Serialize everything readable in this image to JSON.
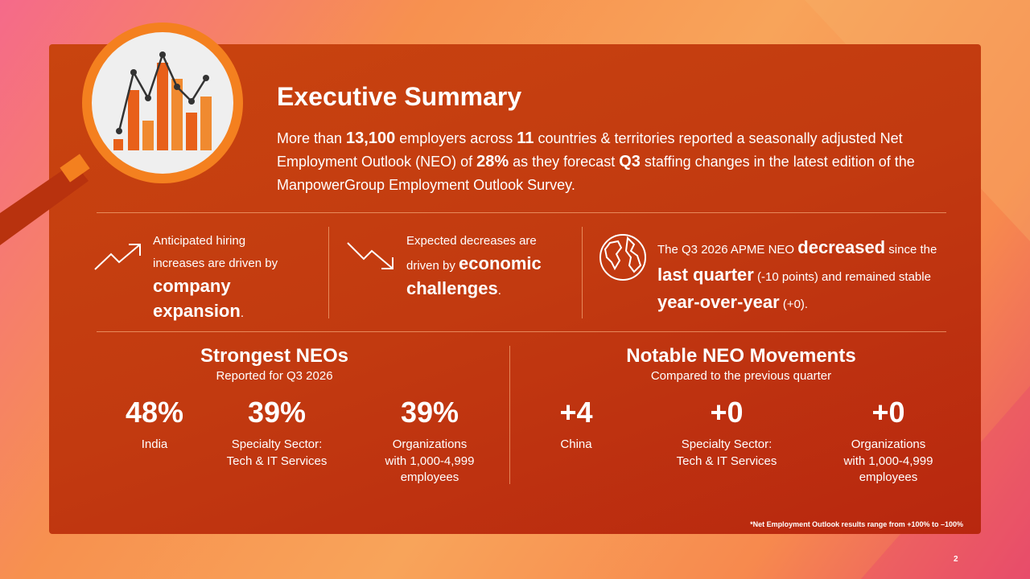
{
  "header": {
    "title": "Executive Summary",
    "summary": [
      {
        "text": "More than ",
        "strong": false
      },
      {
        "text": "13,100",
        "strong": true
      },
      {
        "text": " employers across ",
        "strong": false
      },
      {
        "text": "11",
        "strong": true
      },
      {
        "text": " countries & territories reported a seasonally adjusted Net Employment Outlook (NEO) of ",
        "strong": false
      },
      {
        "text": "28%",
        "strong": true
      },
      {
        "text": " as they forecast ",
        "strong": false
      },
      {
        "text": "Q3",
        "strong": true
      },
      {
        "text": " staffing changes in the latest edition of the ManpowerGroup Employment Outlook Survey.",
        "strong": false
      }
    ]
  },
  "highlights": [
    {
      "runs": [
        {
          "text": "Anticipated hiring increases are driven by ",
          "strong": false
        },
        {
          "text": "company expansion",
          "strong": true
        },
        {
          "text": ".",
          "strong": false
        }
      ]
    },
    {
      "runs": [
        {
          "text": "Expected decreases are driven by ",
          "strong": false
        },
        {
          "text": "economic challenges",
          "strong": true
        },
        {
          "text": ".",
          "strong": false
        }
      ]
    },
    {
      "runs": [
        {
          "text": "The Q3 2026 APME NEO ",
          "strong": false
        },
        {
          "text": "decreased",
          "strong": true
        },
        {
          "text": " since the ",
          "strong": false
        },
        {
          "text": "last quarter",
          "strong": true
        },
        {
          "text": " (-10 points) and remained stable ",
          "strong": false
        },
        {
          "text": "year-over-year",
          "strong": true
        },
        {
          "text": " (+0).",
          "strong": false
        }
      ]
    }
  ],
  "strongest": {
    "title": "Strongest NEOs",
    "subtitle": "Reported for Q3 2026",
    "stats": [
      {
        "value": "48%",
        "label": [
          "India"
        ]
      },
      {
        "value": "39%",
        "label": [
          "Specialty Sector:",
          "Tech & IT Services"
        ]
      },
      {
        "value": "39%",
        "label": [
          "Organizations",
          "with 1,000-4,999",
          "employees"
        ]
      }
    ]
  },
  "movements": {
    "title": "Notable NEO Movements",
    "subtitle": "Compared to the previous quarter",
    "stats": [
      {
        "value": "+4",
        "label": [
          "China"
        ]
      },
      {
        "value": "+0",
        "label": [
          "Specialty Sector:",
          "Tech & IT Services"
        ]
      },
      {
        "value": "+0",
        "label": [
          "Organizations",
          "with 1,000-4,999",
          "employees"
        ]
      }
    ]
  },
  "footnote": "*Net Employment Outlook results range from +100% to –100%",
  "page_number": "2"
}
